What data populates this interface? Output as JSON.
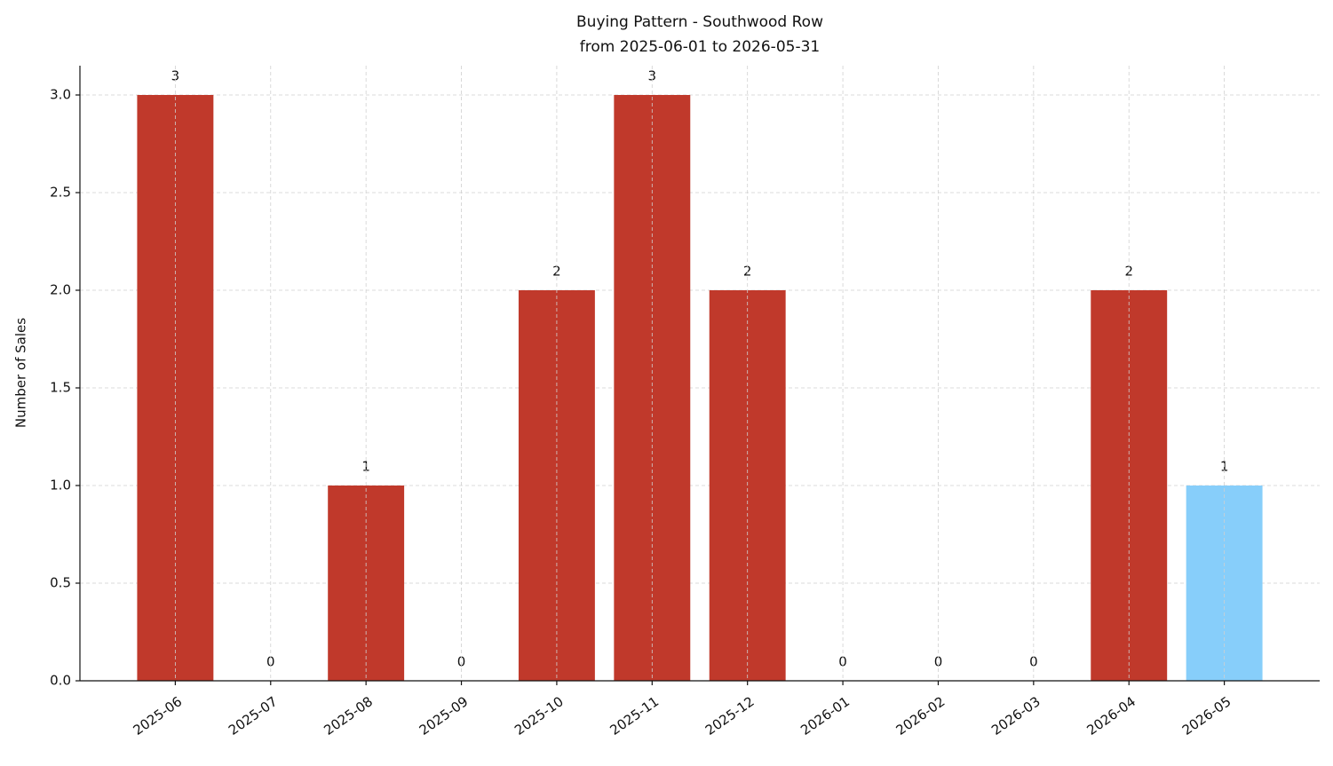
{
  "chart_data": {
    "type": "bar",
    "title": "Buying Pattern - Southwood Row",
    "subtitle": "from 2025-06-01 to 2026-05-31",
    "y_label": "Number of Sales",
    "categories": [
      "2025-06",
      "2025-07",
      "2025-08",
      "2025-09",
      "2025-10",
      "2025-11",
      "2025-12",
      "2026-01",
      "2026-02",
      "2026-03",
      "2026-04",
      "2026-05"
    ],
    "values": [
      3,
      0,
      1,
      0,
      2,
      3,
      2,
      0,
      0,
      0,
      2,
      1
    ],
    "colors": [
      "#c0392b",
      "#c0392b",
      "#c0392b",
      "#c0392b",
      "#c0392b",
      "#c0392b",
      "#c0392b",
      "#c0392b",
      "#c0392b",
      "#c0392b",
      "#c0392b",
      "#87cefa"
    ],
    "ylim": [
      0,
      3.15
    ],
    "yticks": [
      {
        "value": 0,
        "label": "0.0"
      },
      {
        "value": 0.5,
        "label": "0.5"
      },
      {
        "value": 1,
        "label": "1.0"
      },
      {
        "value": 1.5,
        "label": "1.5"
      },
      {
        "value": 2,
        "label": "2.0"
      },
      {
        "value": 2.5,
        "label": "2.5"
      },
      {
        "value": 3,
        "label": "3.0"
      }
    ],
    "grid": true
  }
}
